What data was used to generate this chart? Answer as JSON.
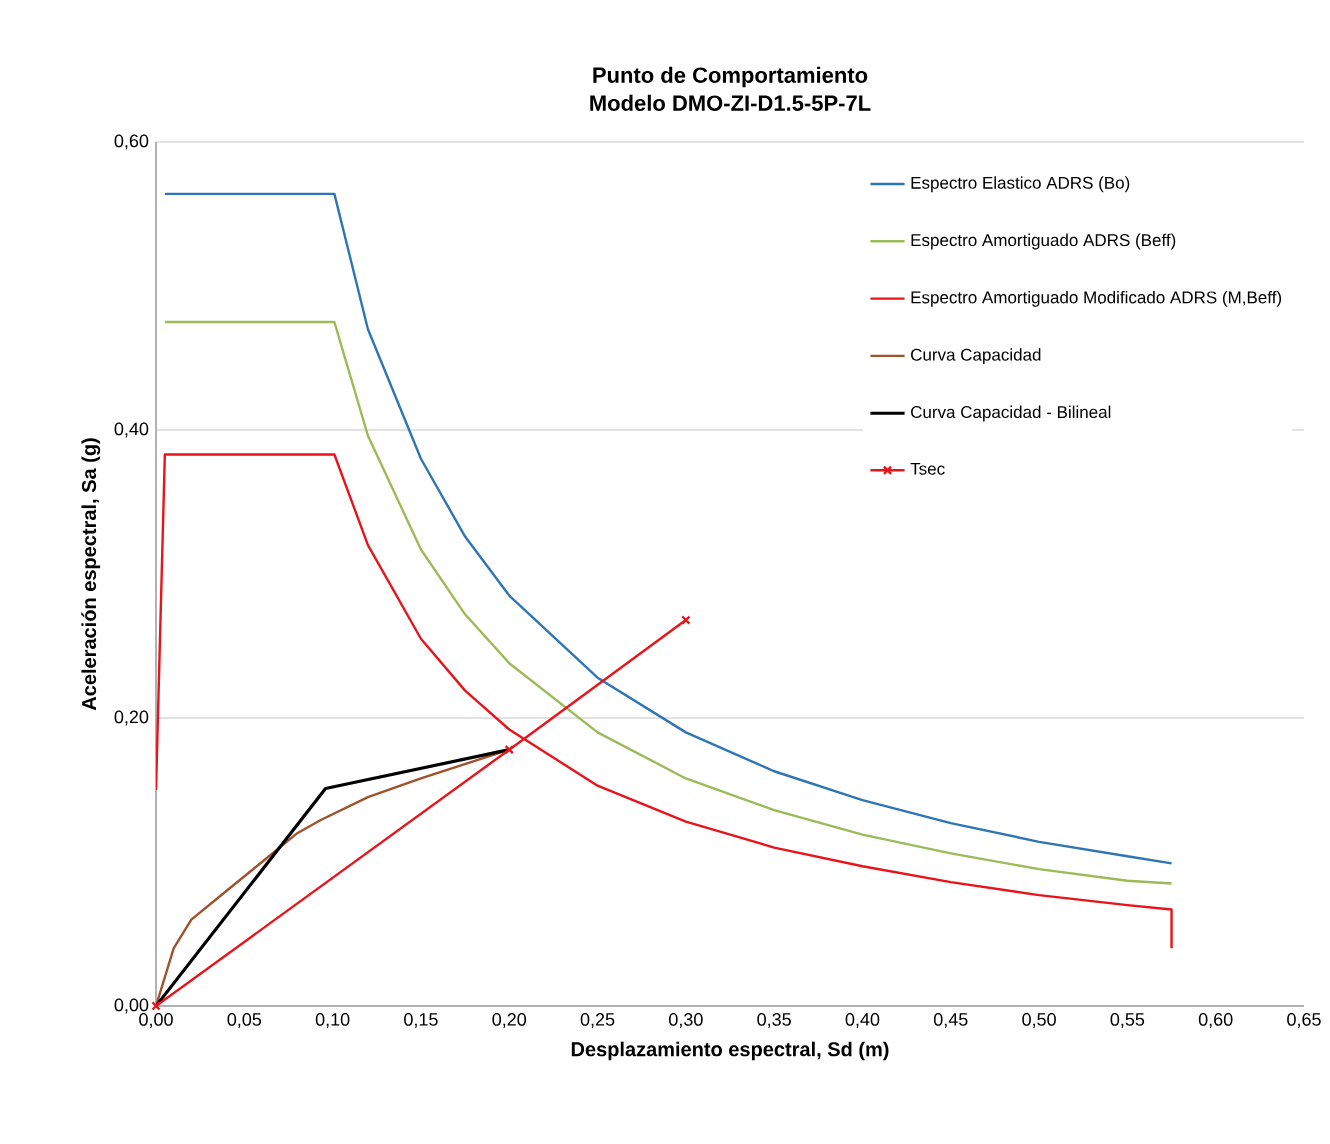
{
  "chart_data": {
    "type": "line",
    "title": "Punto de Comportamiento",
    "subtitle": "Modelo  DMO-ZI-D1.5-5P-7L",
    "xlabel": "Desplazamiento espectral, Sd (m)",
    "ylabel": "Aceleración espectral,  Sa (g)",
    "xlim": [
      0,
      0.65
    ],
    "ylim": [
      0,
      0.6
    ],
    "xticks": [
      {
        "value": 0,
        "label": "0,00"
      },
      {
        "value": 0.05,
        "label": "0,05"
      },
      {
        "value": 0.1,
        "label": "0,10"
      },
      {
        "value": 0.15,
        "label": "0,15"
      },
      {
        "value": 0.2,
        "label": "0,20"
      },
      {
        "value": 0.25,
        "label": "0,25"
      },
      {
        "value": 0.3,
        "label": "0,30"
      },
      {
        "value": 0.35,
        "label": "0,35"
      },
      {
        "value": 0.4,
        "label": "0,40"
      },
      {
        "value": 0.45,
        "label": "0,45"
      },
      {
        "value": 0.5,
        "label": "0,50"
      },
      {
        "value": 0.55,
        "label": "0,55"
      },
      {
        "value": 0.6,
        "label": "0,60"
      },
      {
        "value": 0.65,
        "label": "0,65"
      }
    ],
    "yticks": [
      {
        "value": 0,
        "label": "0,00"
      },
      {
        "value": 0.2,
        "label": "0,20"
      },
      {
        "value": 0.4,
        "label": "0,40"
      },
      {
        "value": 0.6,
        "label": "0,60"
      }
    ],
    "grid": "y",
    "legend": "right",
    "series": [
      {
        "name": "Espectro Elastico ADRS (Bo)",
        "color": "#2e75b6",
        "x": [
          0.005,
          0.101,
          0.12,
          0.15,
          0.175,
          0.2,
          0.25,
          0.3,
          0.35,
          0.4,
          0.45,
          0.5,
          0.55,
          0.575
        ],
        "values": [
          0.564,
          0.564,
          0.47,
          0.38,
          0.326,
          0.285,
          0.228,
          0.19,
          0.163,
          0.143,
          0.127,
          0.114,
          0.104,
          0.099
        ]
      },
      {
        "name": "Espectro Amortiguado ADRS (Beff)",
        "color": "#9bbb59",
        "x": [
          0.005,
          0.101,
          0.12,
          0.15,
          0.175,
          0.2,
          0.25,
          0.3,
          0.35,
          0.4,
          0.45,
          0.5,
          0.55,
          0.575
        ],
        "values": [
          0.475,
          0.475,
          0.396,
          0.317,
          0.272,
          0.238,
          0.19,
          0.158,
          0.136,
          0.119,
          0.106,
          0.095,
          0.087,
          0.085
        ]
      },
      {
        "name": "Espectro Amortiguado Modificado ADRS (M,Beff)",
        "color": "#e8141b",
        "x": [
          0,
          0.005,
          0.101,
          0.12,
          0.15,
          0.175,
          0.2,
          0.25,
          0.3,
          0.35,
          0.4,
          0.45,
          0.5,
          0.55,
          0.575,
          0.575
        ],
        "values": [
          0.15,
          0.383,
          0.383,
          0.32,
          0.255,
          0.219,
          0.192,
          0.153,
          0.128,
          0.11,
          0.097,
          0.086,
          0.077,
          0.07,
          0.067,
          0.04
        ]
      },
      {
        "name": "Curva Capacidad",
        "color": "#a0522d",
        "x": [
          0,
          0.01,
          0.02,
          0.04,
          0.06,
          0.08,
          0.093,
          0.12,
          0.15,
          0.2
        ],
        "values": [
          0,
          0.04,
          0.06,
          0.08,
          0.1,
          0.12,
          0.129,
          0.145,
          0.158,
          0.178
        ]
      },
      {
        "name": "Curva Capacidad - Bilineal",
        "color": "#000000",
        "x": [
          0,
          0.096,
          0.2
        ],
        "values": [
          0,
          0.151,
          0.178
        ]
      },
      {
        "name": "Tsec",
        "color": "#e8141b",
        "marker": "cross",
        "x": [
          0,
          0.2,
          0.3
        ],
        "values": [
          0,
          0.178,
          0.268
        ]
      }
    ]
  }
}
